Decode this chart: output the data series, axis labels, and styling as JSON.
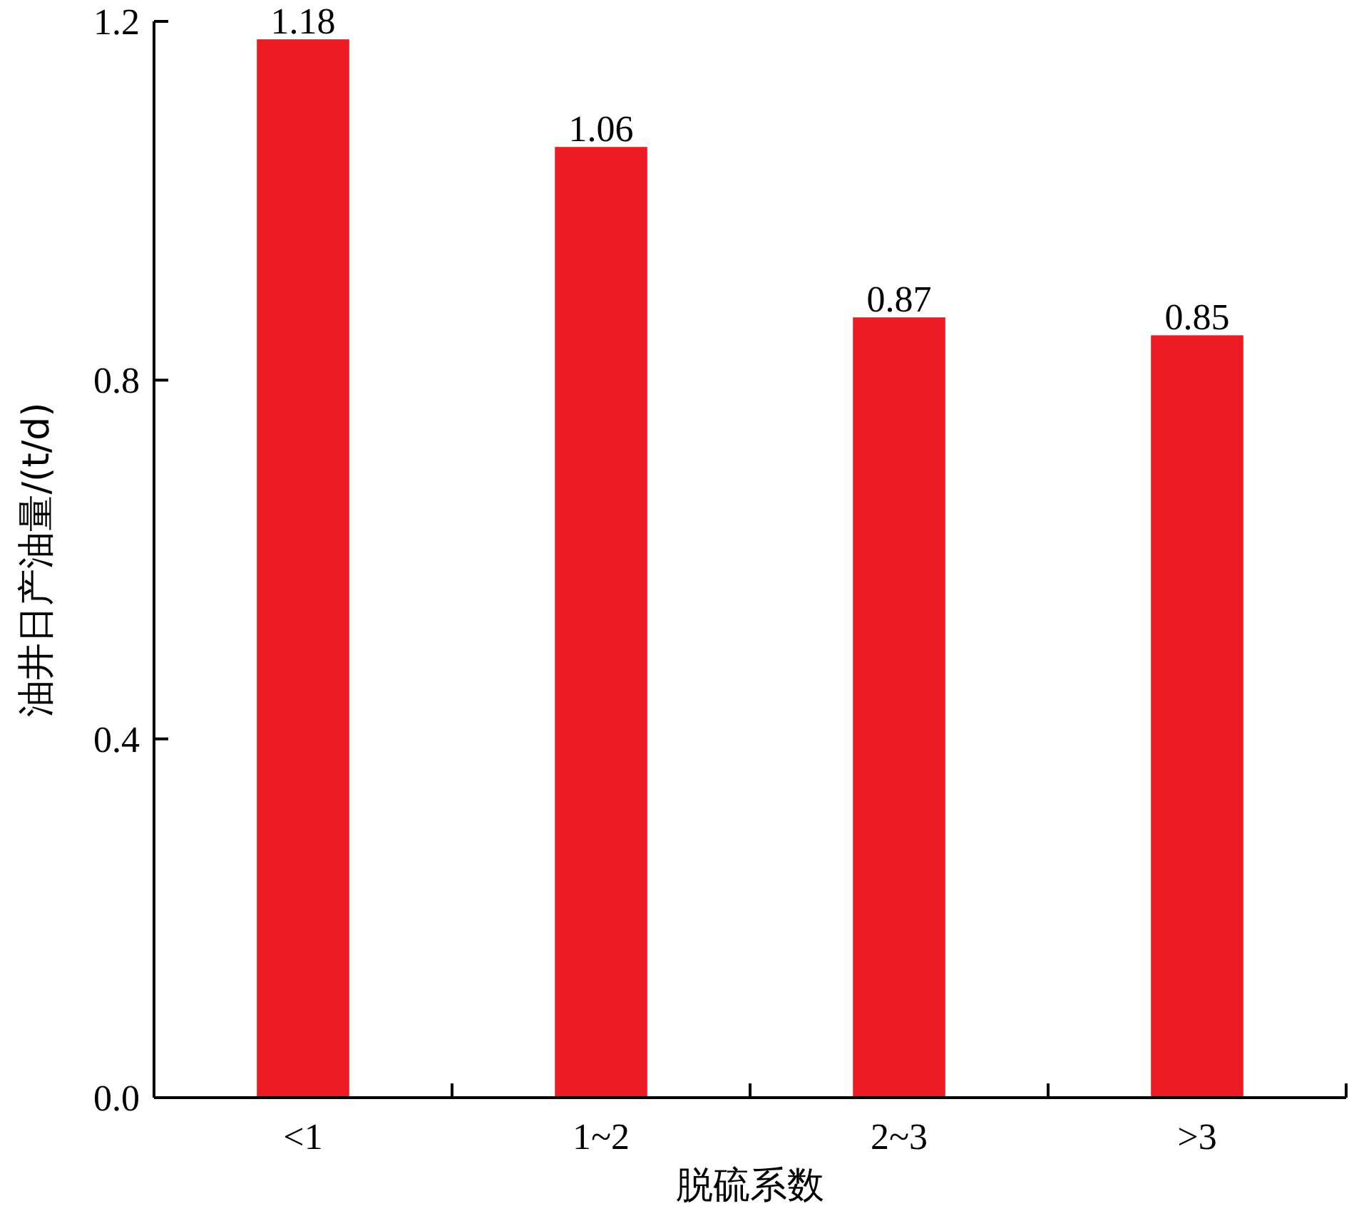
{
  "chart_data": {
    "type": "bar",
    "xlabel": "脱硫系数",
    "ylabel": "油井日产油量/(t/d)",
    "categories": [
      "<1",
      "1~2",
      "2~3",
      ">3"
    ],
    "values": [
      1.18,
      1.06,
      0.87,
      0.85
    ],
    "color": "#ed1c24",
    "ylim": [
      0,
      1.2
    ],
    "yticks": [
      {
        "value": 0,
        "label": "0.0"
      },
      {
        "value": 0.4,
        "label": "0.4"
      },
      {
        "value": 0.8,
        "label": "0.8"
      },
      {
        "value": 1.2,
        "label": "1.2"
      }
    ],
    "data_labels": true
  }
}
